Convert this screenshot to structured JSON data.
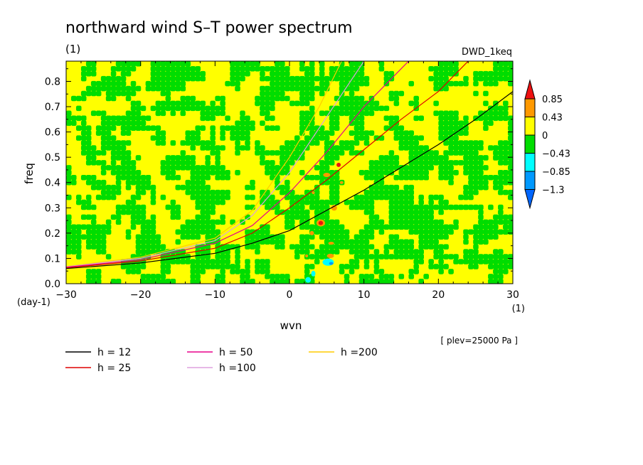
{
  "chart_data": {
    "type": "heatmap",
    "title": "northward wind S–T power spectrum",
    "title_units": "(1)",
    "dataset_label": "DWD_1keq",
    "xlabel": "wvn",
    "x_units": "(1)",
    "ylabel": "freq",
    "y_units": "(day-1)",
    "xlim": [
      -30,
      30
    ],
    "ylim": [
      0,
      0.88
    ],
    "x_ticks": [
      "−30",
      "−20",
      "−10",
      "0",
      "10",
      "20",
      "30"
    ],
    "y_ticks": [
      "0.0",
      "0.1",
      "0.2",
      "0.3",
      "0.4",
      "0.5",
      "0.6",
      "0.7",
      "0.8"
    ],
    "plev_label": "[ plev=25000 Pa ]",
    "colorbar": {
      "levels": [
        "0.85",
        "0.43",
        "0",
        "−0.43",
        "−0.85",
        "−1.3"
      ],
      "colors": [
        "#ee1111",
        "#ff9900",
        "#ffff00",
        "#00dd00",
        "#00ffff",
        "#0099ff",
        "#0066ff"
      ]
    },
    "series": [
      {
        "name": "h = 12",
        "color": "#000000",
        "equivalent_depth": 12
      },
      {
        "name": "h = 25",
        "color": "#dd0000",
        "equivalent_depth": 25
      },
      {
        "name": "h = 50",
        "color": "#e8008a",
        "equivalent_depth": 50
      },
      {
        "name": "h =100",
        "color": "#dda0dd",
        "equivalent_depth": 100
      },
      {
        "name": "h =200",
        "color": "#ffcc00",
        "equivalent_depth": 200
      }
    ],
    "dispersion_curves": [
      {
        "series": "h = 12",
        "points": [
          [
            -30,
            0.06
          ],
          [
            -20,
            0.082
          ],
          [
            -10,
            0.12
          ],
          [
            -5,
            0.16
          ],
          [
            0,
            0.21
          ],
          [
            5,
            0.29
          ],
          [
            10,
            0.37
          ],
          [
            15,
            0.46
          ],
          [
            20,
            0.55
          ],
          [
            25,
            0.65
          ],
          [
            30,
            0.76
          ]
        ]
      },
      {
        "series": "h = 25",
        "points": [
          [
            -30,
            0.063
          ],
          [
            -20,
            0.09
          ],
          [
            -10,
            0.14
          ],
          [
            -5,
            0.2
          ],
          [
            0,
            0.3
          ],
          [
            5,
            0.41
          ],
          [
            10,
            0.53
          ],
          [
            15,
            0.65
          ],
          [
            20,
            0.76
          ],
          [
            24,
            0.88
          ]
        ]
      },
      {
        "series": "h = 50",
        "points": [
          [
            -30,
            0.065
          ],
          [
            -20,
            0.095
          ],
          [
            -10,
            0.16
          ],
          [
            -5,
            0.23
          ],
          [
            0,
            0.36
          ],
          [
            5,
            0.52
          ],
          [
            10,
            0.7
          ],
          [
            16,
            0.88
          ]
        ]
      },
      {
        "series": "h =100",
        "points": [
          [
            -30,
            0.067
          ],
          [
            -20,
            0.1
          ],
          [
            -10,
            0.17
          ],
          [
            -5,
            0.27
          ],
          [
            0,
            0.44
          ],
          [
            5,
            0.66
          ],
          [
            10,
            0.88
          ]
        ]
      },
      {
        "series": "h =200",
        "points": [
          [
            -30,
            0.068
          ],
          [
            -20,
            0.105
          ],
          [
            -10,
            0.18
          ],
          [
            -5,
            0.29
          ],
          [
            0,
            0.5
          ],
          [
            4,
            0.7
          ],
          [
            7,
            0.88
          ]
        ]
      }
    ]
  }
}
